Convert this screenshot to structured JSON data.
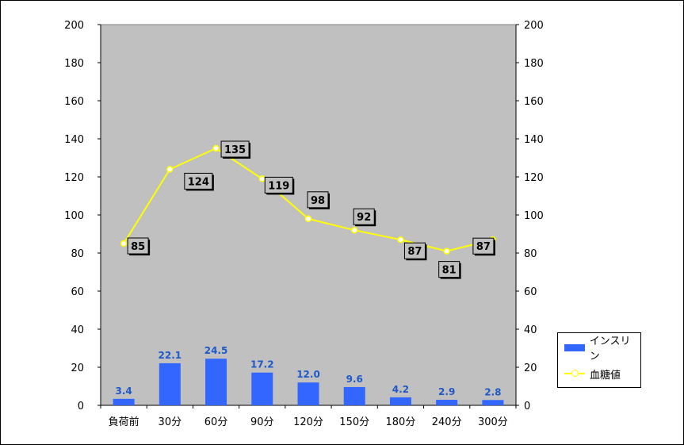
{
  "chart_data": {
    "type": "bar+line",
    "categories": [
      "負荷前",
      "30分",
      "60分",
      "90分",
      "120分",
      "150分",
      "180分",
      "240分",
      "300分"
    ],
    "series": [
      {
        "name": "インスリン",
        "type": "bar",
        "values": [
          3.4,
          22.1,
          24.5,
          17.2,
          12.0,
          9.6,
          4.2,
          2.9,
          2.8
        ],
        "labels": [
          "3.4",
          "22.1",
          "24.5",
          "17.2",
          "12.0",
          "9.6",
          "4.2",
          "2.9",
          "2.8"
        ]
      },
      {
        "name": "血糖値",
        "type": "line",
        "values": [
          85,
          124,
          135,
          119,
          98,
          92,
          87,
          81,
          87
        ],
        "labels": [
          "85",
          "124",
          "135",
          "119",
          "98",
          "92",
          "87",
          "81",
          "87"
        ]
      }
    ],
    "ylim": [
      0,
      200
    ],
    "y2lim": [
      0,
      200
    ],
    "yticks": [
      "0",
      "20",
      "40",
      "60",
      "80",
      "100",
      "120",
      "140",
      "160",
      "180",
      "200"
    ],
    "legend": "right",
    "colors": {
      "bar": "#3366ff",
      "line": "#ffff00",
      "plot_bg": "#c0c0c0",
      "bar_label": "#1f58c8"
    }
  }
}
